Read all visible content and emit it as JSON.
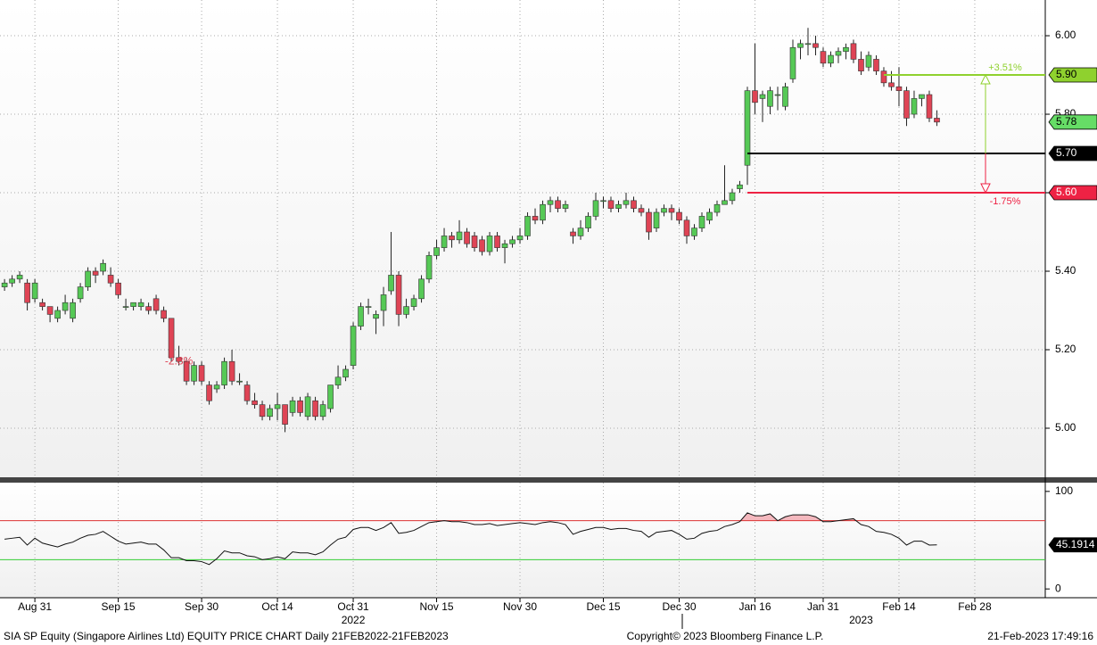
{
  "chart_data": {
    "type": "candlestick",
    "up_color": "#56c956",
    "down_color": "#df4455",
    "xlim": [
      -0.6,
      137.3
    ],
    "xticks": [
      {
        "value": 4,
        "label": "Aug 31"
      },
      {
        "value": 15,
        "label": "Sep 15"
      },
      {
        "value": 26,
        "label": "Sep 30"
      },
      {
        "value": 36,
        "label": "Oct 14"
      },
      {
        "value": 46,
        "label": "Oct 31"
      },
      {
        "value": 57,
        "label": "Nov 15"
      },
      {
        "value": 68,
        "label": "Nov 30"
      },
      {
        "value": 79,
        "label": "Dec 15"
      },
      {
        "value": 89,
        "label": "Dec 30"
      },
      {
        "value": 99,
        "label": "Jan 16"
      },
      {
        "value": 108,
        "label": "Jan 31"
      },
      {
        "value": 118,
        "label": "Feb 14"
      },
      {
        "value": 128,
        "label": "Feb 28"
      }
    ],
    "year_labels": [
      {
        "value": 46,
        "label": "2022"
      },
      {
        "value": 113,
        "label": "2023"
      }
    ],
    "ylim": [
      4.875,
      6.091
    ],
    "yticks": [
      {
        "value": 5,
        "label": "5.00"
      },
      {
        "value": 5.2,
        "label": "5.20"
      },
      {
        "value": 5.4,
        "label": "5.40"
      },
      {
        "value": 5.6,
        "label": "5.60"
      },
      {
        "value": 5.8,
        "label": "5.80"
      },
      {
        "value": 6,
        "label": "6.00"
      }
    ],
    "grid": true,
    "candles": [
      [
        5.36,
        5.38,
        5.35,
        5.37
      ],
      [
        5.37,
        5.39,
        5.36,
        5.38
      ],
      [
        5.38,
        5.4,
        5.37,
        5.39
      ],
      [
        5.37,
        5.38,
        5.3,
        5.32
      ],
      [
        5.33,
        5.38,
        5.32,
        5.37
      ],
      [
        5.32,
        5.33,
        5.3,
        5.31
      ],
      [
        5.31,
        5.31,
        5.27,
        5.29
      ],
      [
        5.28,
        5.31,
        5.27,
        5.3
      ],
      [
        5.3,
        5.34,
        5.29,
        5.32
      ],
      [
        5.28,
        5.33,
        5.27,
        5.32
      ],
      [
        5.33,
        5.37,
        5.32,
        5.36
      ],
      [
        5.36,
        5.41,
        5.35,
        5.4
      ],
      [
        5.4,
        5.41,
        5.37,
        5.39
      ],
      [
        5.4,
        5.43,
        5.39,
        5.42
      ],
      [
        5.39,
        5.41,
        5.36,
        5.37
      ],
      [
        5.37,
        5.38,
        5.33,
        5.34
      ],
      [
        5.31,
        5.33,
        5.3,
        5.31
      ],
      [
        5.31,
        5.32,
        5.3,
        5.32
      ],
      [
        5.31,
        5.33,
        5.3,
        5.32
      ],
      [
        5.31,
        5.32,
        5.29,
        5.3
      ],
      [
        5.33,
        5.34,
        5.29,
        5.3
      ],
      [
        5.3,
        5.31,
        5.27,
        5.28
      ],
      [
        5.28,
        5.28,
        5.17,
        5.18
      ],
      [
        5.18,
        5.21,
        5.16,
        5.17
      ],
      [
        5.17,
        5.18,
        5.11,
        5.12
      ],
      [
        5.12,
        5.17,
        5.11,
        5.16
      ],
      [
        5.16,
        5.17,
        5.11,
        5.12
      ],
      [
        5.11,
        5.12,
        5.06,
        5.07
      ],
      [
        5.1,
        5.12,
        5.09,
        5.11
      ],
      [
        5.11,
        5.18,
        5.1,
        5.17
      ],
      [
        5.17,
        5.2,
        5.11,
        5.12
      ],
      [
        5.12,
        5.14,
        5.11,
        5.12
      ],
      [
        5.11,
        5.12,
        5.06,
        5.07
      ],
      [
        5.07,
        5.09,
        5.05,
        5.06
      ],
      [
        5.06,
        5.07,
        5.02,
        5.03
      ],
      [
        5.03,
        5.06,
        5.02,
        5.05
      ],
      [
        5.05,
        5.09,
        5.02,
        5.06
      ],
      [
        5.06,
        5.06,
        4.99,
        5.01
      ],
      [
        5.04,
        5.08,
        5.03,
        5.07
      ],
      [
        5.07,
        5.08,
        5.03,
        5.04
      ],
      [
        5.03,
        5.09,
        5.02,
        5.08
      ],
      [
        5.07,
        5.08,
        5.02,
        5.03
      ],
      [
        5.03,
        5.07,
        5.02,
        5.06
      ],
      [
        5.05,
        5.11,
        5.04,
        5.11
      ],
      [
        5.11,
        5.16,
        5.1,
        5.13
      ],
      [
        5.13,
        5.16,
        5.12,
        5.15
      ],
      [
        5.16,
        5.27,
        5.15,
        5.26
      ],
      [
        5.26,
        5.32,
        5.25,
        5.31
      ],
      [
        5.31,
        5.33,
        5.29,
        5.31
      ],
      [
        5.28,
        5.3,
        5.24,
        5.29
      ],
      [
        5.3,
        5.36,
        5.26,
        5.34
      ],
      [
        5.35,
        5.5,
        5.34,
        5.39
      ],
      [
        5.39,
        5.4,
        5.26,
        5.29
      ],
      [
        5.29,
        5.33,
        5.28,
        5.31
      ],
      [
        5.31,
        5.34,
        5.3,
        5.33
      ],
      [
        5.33,
        5.39,
        5.32,
        5.38
      ],
      [
        5.38,
        5.45,
        5.37,
        5.44
      ],
      [
        5.44,
        5.48,
        5.43,
        5.46
      ],
      [
        5.46,
        5.51,
        5.45,
        5.49
      ],
      [
        5.49,
        5.5,
        5.46,
        5.48
      ],
      [
        5.48,
        5.53,
        5.47,
        5.5
      ],
      [
        5.5,
        5.51,
        5.46,
        5.47
      ],
      [
        5.49,
        5.5,
        5.45,
        5.46
      ],
      [
        5.48,
        5.49,
        5.44,
        5.45
      ],
      [
        5.45,
        5.5,
        5.44,
        5.49
      ],
      [
        5.49,
        5.5,
        5.45,
        5.46
      ],
      [
        5.46,
        5.48,
        5.42,
        5.47
      ],
      [
        5.47,
        5.49,
        5.46,
        5.48
      ],
      [
        5.48,
        5.51,
        5.47,
        5.49
      ],
      [
        5.49,
        5.55,
        5.48,
        5.54
      ],
      [
        5.54,
        5.56,
        5.52,
        5.53
      ],
      [
        5.53,
        5.58,
        5.52,
        5.57
      ],
      [
        5.57,
        5.59,
        5.55,
        5.58
      ],
      [
        5.58,
        5.59,
        5.55,
        5.56
      ],
      [
        5.56,
        5.58,
        5.55,
        5.57
      ],
      [
        5.5,
        5.51,
        5.47,
        5.49
      ],
      [
        5.49,
        5.53,
        5.48,
        5.51
      ],
      [
        5.51,
        5.55,
        5.5,
        5.54
      ],
      [
        5.54,
        5.6,
        5.53,
        5.58
      ],
      [
        5.58,
        5.59,
        5.56,
        5.58
      ],
      [
        5.58,
        5.59,
        5.55,
        5.56
      ],
      [
        5.56,
        5.58,
        5.55,
        5.57
      ],
      [
        5.57,
        5.6,
        5.56,
        5.58
      ],
      [
        5.58,
        5.59,
        5.55,
        5.56
      ],
      [
        5.56,
        5.57,
        5.54,
        5.55
      ],
      [
        5.55,
        5.56,
        5.48,
        5.5
      ],
      [
        5.51,
        5.56,
        5.5,
        5.55
      ],
      [
        5.55,
        5.57,
        5.54,
        5.56
      ],
      [
        5.56,
        5.57,
        5.53,
        5.55
      ],
      [
        5.55,
        5.56,
        5.52,
        5.53
      ],
      [
        5.53,
        5.54,
        5.47,
        5.49
      ],
      [
        5.49,
        5.52,
        5.48,
        5.51
      ],
      [
        5.51,
        5.55,
        5.5,
        5.54
      ],
      [
        5.53,
        5.56,
        5.52,
        5.55
      ],
      [
        5.55,
        5.58,
        5.54,
        5.57
      ],
      [
        5.57,
        5.67,
        5.57,
        5.58
      ],
      [
        5.58,
        5.61,
        5.57,
        5.6
      ],
      [
        5.61,
        5.63,
        5.6,
        5.62
      ],
      [
        5.67,
        5.87,
        5.62,
        5.86
      ],
      [
        5.86,
        5.98,
        5.8,
        5.83
      ],
      [
        5.84,
        5.86,
        5.78,
        5.85
      ],
      [
        5.82,
        5.87,
        5.8,
        5.86
      ],
      [
        5.85,
        5.87,
        5.81,
        5.85
      ],
      [
        5.82,
        5.88,
        5.81,
        5.87
      ],
      [
        5.89,
        5.99,
        5.88,
        5.97
      ],
      [
        5.97,
        5.99,
        5.94,
        5.98
      ],
      [
        5.98,
        6.02,
        5.95,
        5.98
      ],
      [
        5.98,
        6.0,
        5.95,
        5.97
      ],
      [
        5.96,
        5.97,
        5.92,
        5.93
      ],
      [
        5.93,
        5.96,
        5.92,
        5.95
      ],
      [
        5.95,
        5.97,
        5.93,
        5.96
      ],
      [
        5.96,
        5.98,
        5.94,
        5.97
      ],
      [
        5.98,
        5.99,
        5.93,
        5.94
      ],
      [
        5.94,
        5.96,
        5.9,
        5.91
      ],
      [
        5.92,
        5.96,
        5.91,
        5.95
      ],
      [
        5.94,
        5.95,
        5.9,
        5.91
      ],
      [
        5.91,
        5.92,
        5.87,
        5.88
      ],
      [
        5.88,
        5.91,
        5.86,
        5.87
      ],
      [
        5.87,
        5.92,
        5.82,
        5.86
      ],
      [
        5.86,
        5.87,
        5.77,
        5.79
      ],
      [
        5.8,
        5.86,
        5.79,
        5.84
      ],
      [
        5.84,
        5.85,
        5.82,
        5.85
      ],
      [
        5.85,
        5.86,
        5.78,
        5.79
      ],
      [
        5.79,
        5.81,
        5.77,
        5.78
      ]
    ],
    "levels": [
      {
        "value": 5.9,
        "label": "5.90",
        "color": "#8fd12e",
        "from": 116,
        "change": "+3.51%"
      },
      {
        "value": 5.7,
        "label": "5.70",
        "color": "#000000",
        "from": 98
      },
      {
        "value": 5.6,
        "label": "5.60",
        "color": "#ee2244",
        "from": 98,
        "change": "-1.75%"
      }
    ],
    "last_color": "#66dd66",
    "annotations": [
      {
        "text": "-2.8%",
        "x": 23,
        "y": 5.17
      }
    ],
    "rsi": {
      "ylim": [
        -9,
        109
      ],
      "yticks": [
        0,
        100
      ],
      "overbought": 70,
      "oversold": 30,
      "values": [
        51,
        52,
        53,
        45,
        52,
        47,
        45,
        43,
        46,
        48,
        52,
        55,
        56,
        59,
        54,
        49,
        46,
        47,
        48,
        46,
        46,
        40,
        32,
        32,
        29,
        29,
        28,
        25,
        31,
        39,
        37,
        37,
        34,
        33,
        30,
        31,
        33,
        31,
        38,
        37,
        37,
        35,
        38,
        45,
        51,
        53,
        61,
        63,
        63,
        60,
        63,
        68,
        57,
        58,
        60,
        64,
        68,
        69,
        70,
        69,
        69,
        68,
        66,
        66,
        67,
        65,
        66,
        67,
        68,
        67,
        66,
        68,
        69,
        68,
        66,
        56,
        59,
        61,
        63,
        63,
        61,
        62,
        62,
        60,
        59,
        53,
        58,
        59,
        60,
        56,
        51,
        52,
        57,
        59,
        60,
        64,
        66,
        69,
        78,
        75,
        75,
        77,
        70,
        74,
        76,
        76,
        76,
        74,
        69,
        69,
        70,
        71,
        72,
        66,
        64,
        59,
        58,
        56,
        52,
        45,
        49,
        49,
        45,
        45.1914
      ]
    },
    "footer": {
      "left": "SIA SP Equity (Singapore Airlines Ltd) EQUITY PRICE CHART  Daily 21FEB2022-21FEB2023",
      "center": "Copyright© 2023 Bloomberg Finance L.P.",
      "right": "21-Feb-2023 17:49:16"
    }
  }
}
